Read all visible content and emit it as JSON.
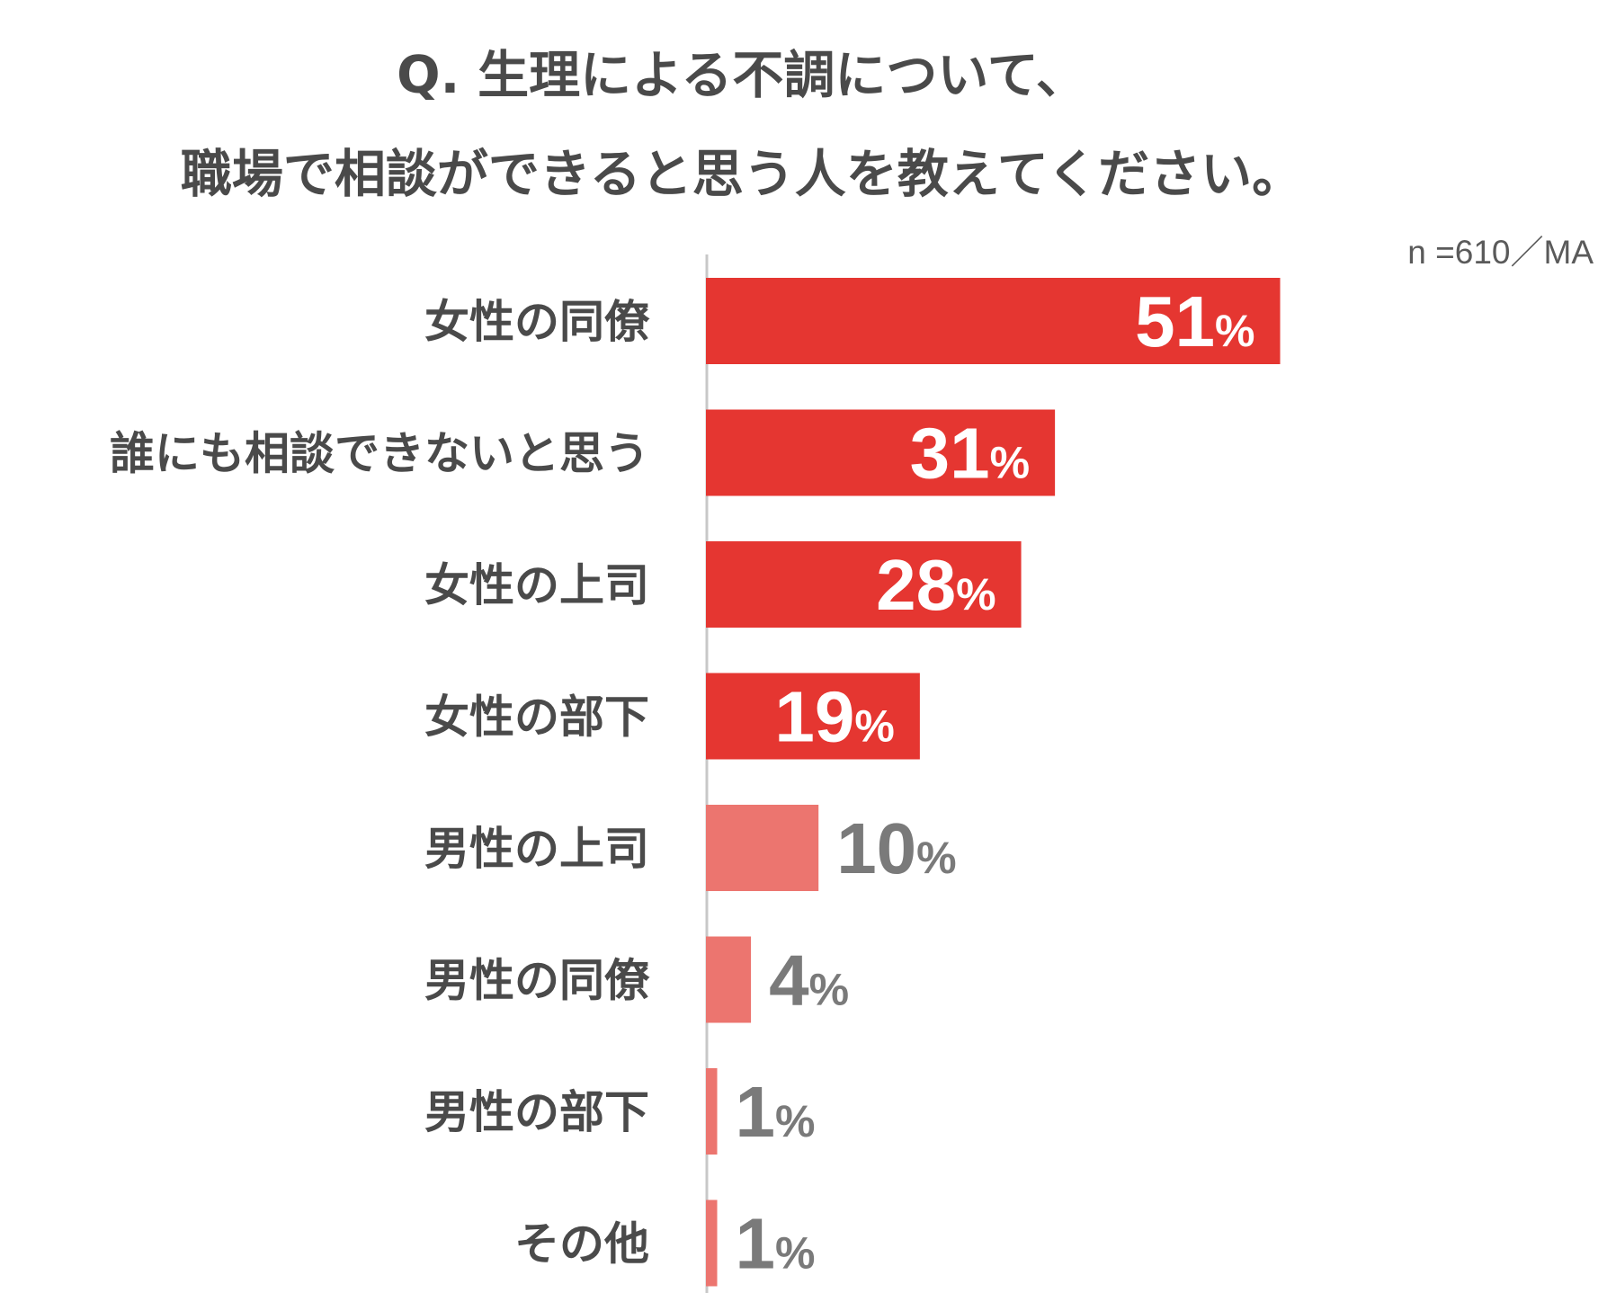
{
  "title_line1": "Q. 生理による不調について、",
  "title_line2": "職場で相談ができると思う人を教えてください。",
  "sample_note": "n =610／MA",
  "colors": {
    "strong": "#e53631",
    "light": "#ec756f",
    "label": "#4a4a4a",
    "value_outside": "#7a7a7a",
    "value_inside": "#ffffff",
    "axis": "#c8c8c8"
  },
  "chart_data": {
    "type": "bar",
    "orientation": "horizontal",
    "title": "Q. 生理による不調について、職場で相談ができると思う人を教えてください。",
    "categories": [
      "女性の同僚",
      "誰にも相談できないと思う",
      "女性の上司",
      "女性の部下",
      "男性の上司",
      "男性の同僚",
      "男性の部下",
      "その他"
    ],
    "values": [
      51,
      31,
      28,
      19,
      10,
      4,
      1,
      1
    ],
    "highlight": [
      true,
      true,
      true,
      true,
      false,
      false,
      false,
      false
    ],
    "unit": "%",
    "xlim": [
      0,
      60
    ],
    "grid": false,
    "legend": "none"
  }
}
